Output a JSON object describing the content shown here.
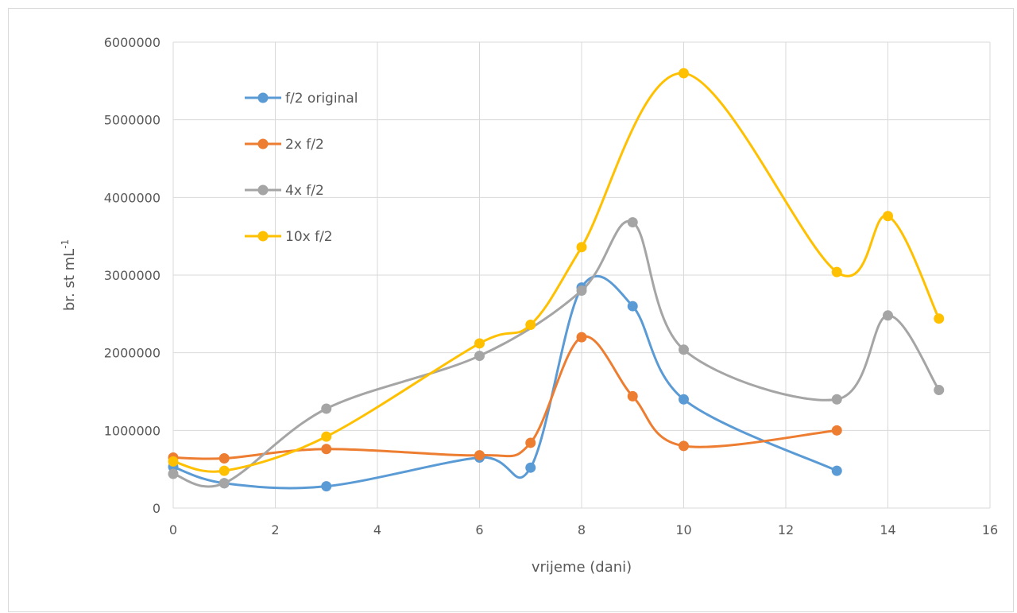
{
  "chart_data": {
    "type": "scatter",
    "title": "",
    "xlabel": "vrijeme (dani)",
    "ylabel_main": "br. st mL",
    "ylabel_sup": "-1",
    "xlim": [
      0,
      16
    ],
    "ylim": [
      0,
      6000000
    ],
    "xticks": [
      "0",
      "2",
      "4",
      "6",
      "8",
      "10",
      "12",
      "14",
      "16"
    ],
    "yticks": [
      "0",
      "1000000",
      "2000000",
      "3000000",
      "4000000",
      "5000000",
      "6000000"
    ],
    "grid": "vertical and horizontal",
    "legend_position": "upper-left inside plot",
    "smooth_lines": true,
    "series": [
      {
        "name": "f/2 original",
        "color": "#5b9bd5",
        "x": [
          0,
          1,
          3,
          6,
          7,
          8,
          9,
          10,
          13
        ],
        "y": [
          530000,
          320000,
          280000,
          650000,
          520000,
          2840000,
          2600000,
          1400000,
          480000
        ]
      },
      {
        "name": "2x f/2",
        "color": "#ed7d31",
        "x": [
          0,
          1,
          3,
          6,
          7,
          8,
          9,
          10,
          13
        ],
        "y": [
          650000,
          640000,
          760000,
          680000,
          840000,
          2200000,
          1440000,
          800000,
          1000000
        ]
      },
      {
        "name": "4x f/2",
        "color": "#a5a5a5",
        "x": [
          0,
          1,
          3,
          6,
          8,
          9,
          10,
          13,
          14,
          15
        ],
        "y": [
          440000,
          320000,
          1280000,
          1960000,
          2800000,
          3680000,
          2040000,
          1400000,
          2480000,
          1520000
        ]
      },
      {
        "name": "10x f/2",
        "color": "#ffc000",
        "x": [
          0,
          1,
          3,
          6,
          7,
          8,
          10,
          13,
          14,
          15
        ],
        "y": [
          600000,
          480000,
          920000,
          2120000,
          2360000,
          3360000,
          5600000,
          3040000,
          3760000,
          2440000
        ]
      }
    ]
  }
}
